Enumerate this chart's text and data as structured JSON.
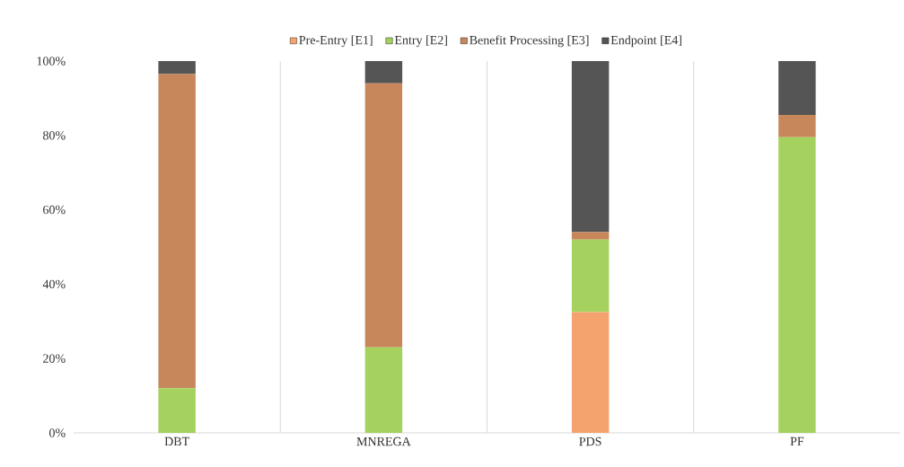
{
  "chart_data": {
    "type": "bar",
    "stacked": true,
    "categories": [
      "DBT",
      "MNREGA",
      "PDS",
      "PF"
    ],
    "series": [
      {
        "name": "Pre-Entry [E1]",
        "color": "#f5a36e",
        "values": [
          0,
          0,
          32.5,
          0
        ]
      },
      {
        "name": "Entry [E2]",
        "color": "#a5d15f",
        "values": [
          12,
          23,
          19.5,
          79.5
        ]
      },
      {
        "name": "Benefit Processing [E3]",
        "color": "#c8875a",
        "values": [
          84.5,
          71,
          2,
          6
        ]
      },
      {
        "name": "Endpoint [E4]",
        "color": "#555555",
        "values": [
          3.5,
          6,
          46,
          14.5
        ]
      }
    ],
    "ylim": [
      0,
      100
    ],
    "yticks": [
      {
        "value": 0,
        "label": "0%"
      },
      {
        "value": 20,
        "label": "20%"
      },
      {
        "value": 40,
        "label": "40%"
      },
      {
        "value": 60,
        "label": "60%"
      },
      {
        "value": 80,
        "label": "80%"
      },
      {
        "value": 100,
        "label": "100%"
      }
    ],
    "grid": "x",
    "legend": "top"
  }
}
